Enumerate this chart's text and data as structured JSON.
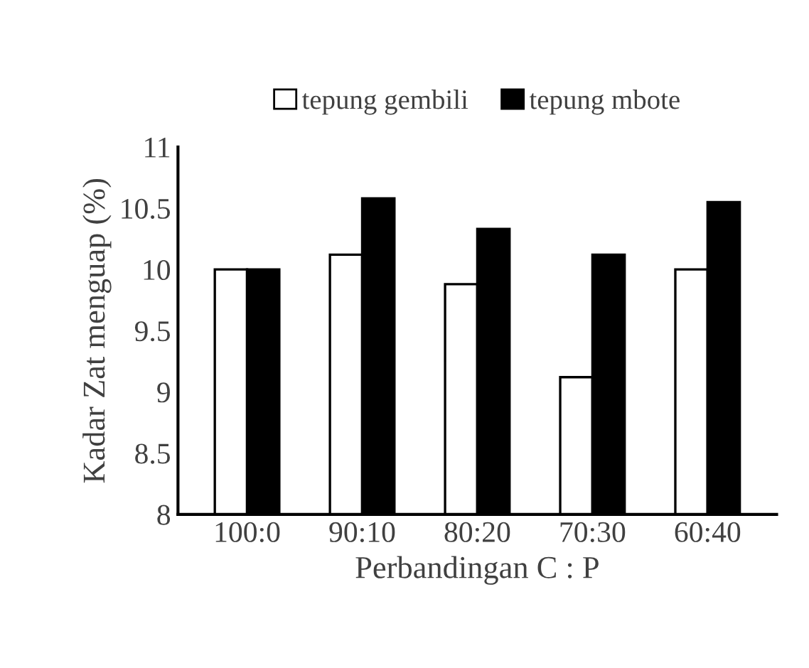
{
  "chart_data": {
    "type": "bar",
    "xlabel": "Perbandingan C : P",
    "ylabel": "Kadar Zat menguap (%)",
    "categories": [
      "100:0",
      "90:10",
      "80:20",
      "70:30",
      "60:40"
    ],
    "series": [
      {
        "name": "tepung gembili",
        "color": "#ffffff",
        "values": [
          10.0,
          10.12,
          9.88,
          9.12,
          10.0
        ]
      },
      {
        "name": "tepung mbote",
        "color": "#000000",
        "values": [
          10.0,
          10.58,
          10.33,
          10.12,
          10.55
        ]
      }
    ],
    "ylim": [
      8,
      11
    ],
    "yticks": [
      8,
      8.5,
      9,
      9.5,
      10,
      10.5,
      11
    ],
    "grid": false,
    "legend": "top"
  }
}
